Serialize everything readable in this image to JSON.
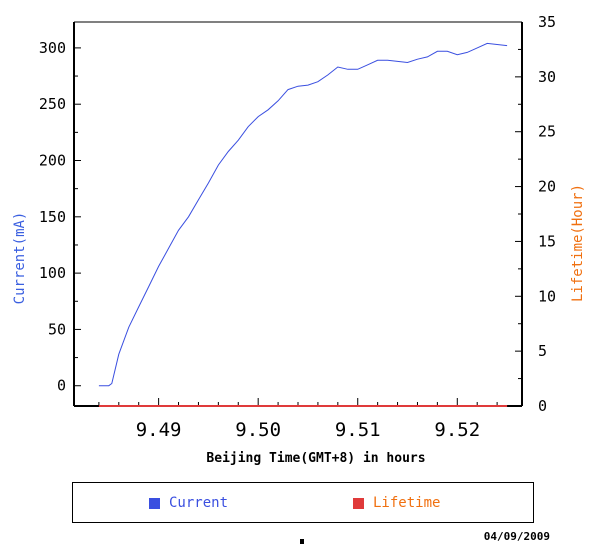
{
  "chart_data": {
    "type": "line",
    "xlabel": "Beijing Time(GMT+8) in hours",
    "ylabel_left": "Current(mA)",
    "ylabel_right": "Lifetime(Hour)",
    "xlim": [
      9.4815,
      9.5265
    ],
    "ylim_left": [
      -18,
      323
    ],
    "ylim_right": [
      0,
      35
    ],
    "x_ticks": [
      "9.49",
      "9.50",
      "9.51",
      "9.52"
    ],
    "y_left_ticks": [
      "0",
      "50",
      "100",
      "150",
      "200",
      "250",
      "300"
    ],
    "y_right_ticks": [
      "0",
      "5",
      "10",
      "15",
      "20",
      "25",
      "30",
      "35"
    ],
    "series": [
      {
        "name": "Current",
        "axis": "left",
        "color": "#3a4fe0",
        "x": [
          9.484,
          9.485,
          9.4853,
          9.486,
          9.487,
          9.488,
          9.489,
          9.49,
          9.491,
          9.492,
          9.493,
          9.494,
          9.495,
          9.496,
          9.497,
          9.498,
          9.499,
          9.5,
          9.501,
          9.502,
          9.503,
          9.504,
          9.505,
          9.506,
          9.507,
          9.508,
          9.509,
          9.51,
          9.511,
          9.512,
          9.513,
          9.514,
          9.515,
          9.516,
          9.517,
          9.518,
          9.519,
          9.52,
          9.521,
          9.522,
          9.523,
          9.524,
          9.525
        ],
        "values": [
          0,
          0,
          2,
          28,
          52,
          70,
          88,
          106,
          122,
          138,
          150,
          165,
          180,
          196,
          208,
          218,
          230,
          239,
          245,
          253,
          263,
          266,
          267,
          270,
          276,
          283,
          281,
          281,
          285,
          289,
          289,
          288,
          287,
          290,
          292,
          297,
          297,
          294,
          296,
          300,
          304,
          303,
          302
        ]
      },
      {
        "name": "Lifetime",
        "axis": "right",
        "color": "#e03a3a",
        "x": [
          9.484,
          9.525
        ],
        "values": [
          0,
          0
        ]
      }
    ],
    "legend": {
      "placement": "bottom",
      "items": [
        {
          "label": "Current",
          "color": "#3a4fe0",
          "text_color": "#3a4fe0"
        },
        {
          "label": "Lifetime",
          "color": "#e03a3a",
          "text_color": "#f07010"
        }
      ]
    },
    "grid": false
  },
  "footer": {
    "date": "04/09/2009"
  }
}
